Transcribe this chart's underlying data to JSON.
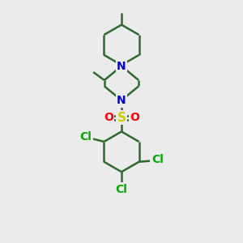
{
  "background_color": "#ebebeb",
  "bond_color": "#2d6b2d",
  "bond_width": 1.8,
  "N_color": "#0000dd",
  "S_color": "#cccc00",
  "O_color": "#ff0000",
  "Cl_color": "#00aa00",
  "font_size": 10,
  "atom_bg_color": "#ebebeb",
  "figsize": [
    3.0,
    3.0
  ],
  "dpi": 100,
  "xlim": [
    0,
    10
  ],
  "ylim": [
    0,
    12
  ]
}
